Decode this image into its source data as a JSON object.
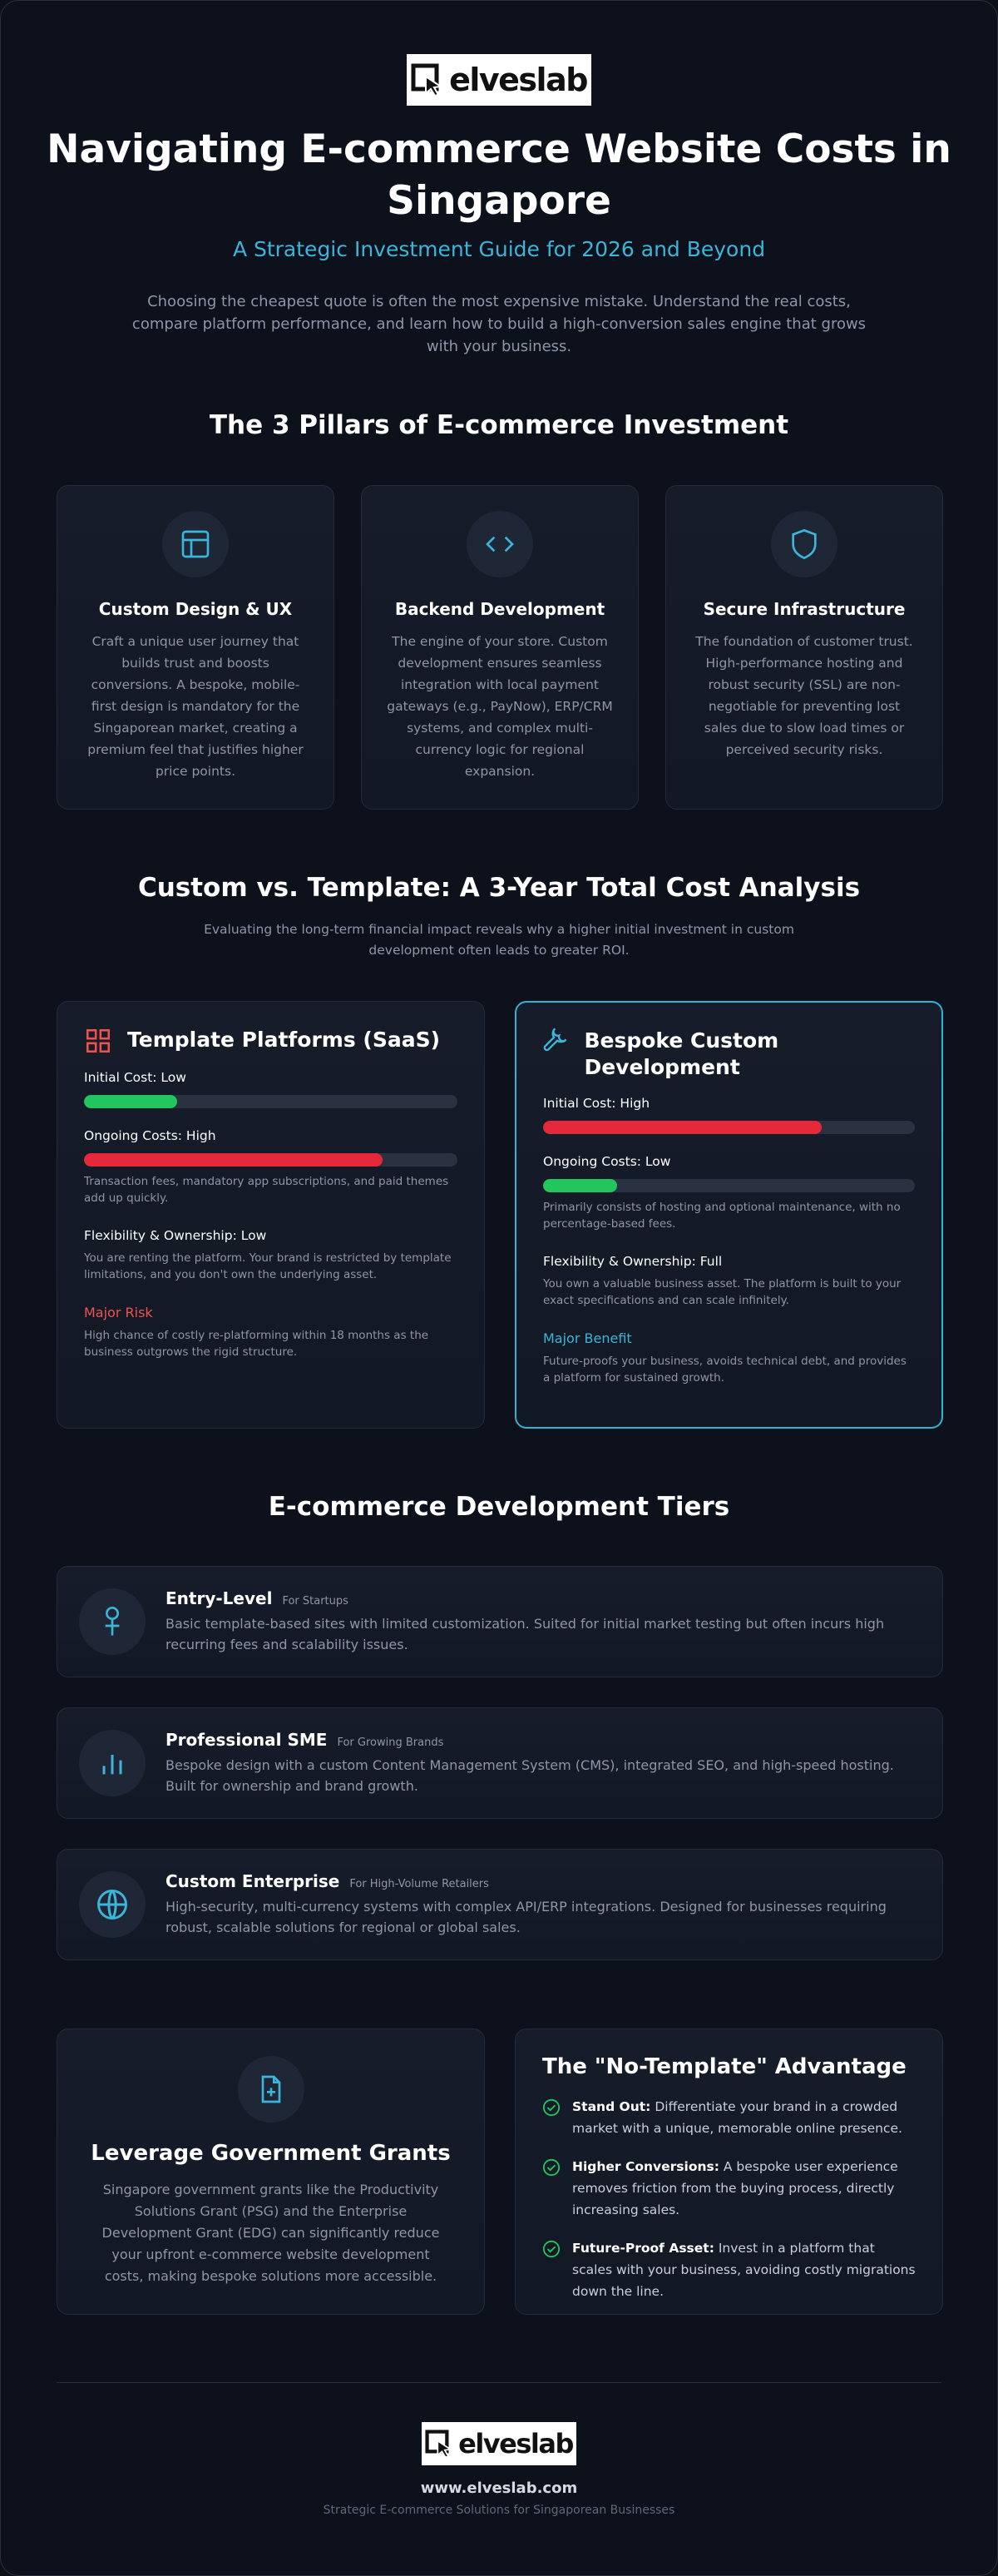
{
  "header": {
    "logo": "elveslab",
    "title": "Navigating E-commerce Website Costs in Singapore",
    "subtitle": "A Strategic Investment Guide for 2026 and Beyond",
    "intro": "Choosing the cheapest quote is often the most expensive mistake. Understand the real costs, compare platform performance, and learn how to build a high-conversion sales engine that grows with your business."
  },
  "pillars": {
    "title": "The 3 Pillars of E-commerce Investment",
    "items": [
      {
        "title": "Custom Design & UX",
        "text": "Craft a unique user journey that builds trust and boosts conversions. A bespoke, mobile-first design is mandatory for the Singaporean market, creating a premium feel that justifies higher price points."
      },
      {
        "title": "Backend Development",
        "text": "The engine of your store. Custom development ensures seamless integration with local payment gateways (e.g., PayNow), ERP/CRM systems, and complex multi-currency logic for regional expansion."
      },
      {
        "title": "Secure Infrastructure",
        "text": "The foundation of customer trust. High-performance hosting and robust security (SSL) are non-negotiable for preventing lost sales due to slow load times or perceived security risks."
      }
    ]
  },
  "comparison": {
    "title": "Custom vs. Template: A 3-Year Total Cost Analysis",
    "subtitle": "Evaluating the long-term financial impact reveals why a higher initial investment in custom development often leads to greater ROI.",
    "cards": [
      {
        "title": "Template Platforms (SaaS)",
        "metrics": [
          {
            "label": "Initial Cost: Low",
            "level": 25,
            "color": "#22c55e"
          },
          {
            "label": "Ongoing Costs: High",
            "level": 80,
            "color": "#e5293a",
            "note": "Transaction fees, mandatory app subscriptions, and paid themes add up quickly."
          }
        ],
        "flexibility": {
          "label": "Flexibility & Ownership: Low",
          "note": "You are renting the platform. Your brand is restricted by template limitations, and you don't own the underlying asset."
        },
        "highlight": {
          "label": "Major Risk",
          "note": "High chance of costly re-platforming within 18 months as the business outgrows the rigid structure."
        }
      },
      {
        "title": "Bespoke Custom Development",
        "metrics": [
          {
            "label": "Initial Cost: High",
            "level": 75,
            "color": "#e5293a"
          },
          {
            "label": "Ongoing Costs: Low",
            "level": 20,
            "color": "#22c55e",
            "note": "Primarily consists of hosting and optional maintenance, with no percentage-based fees."
          }
        ],
        "flexibility": {
          "label": "Flexibility & Ownership: Full",
          "note": "You own a valuable business asset. The platform is built to your exact specifications and can scale infinitely."
        },
        "highlight": {
          "label": "Major Benefit",
          "note": "Future-proofs your business, avoids technical debt, and provides a platform for sustained growth."
        }
      }
    ]
  },
  "tiers": {
    "title": "E-commerce Development Tiers",
    "items": [
      {
        "title": "Entry-Level",
        "tag": "For Startups",
        "text": "Basic template-based sites with limited customization. Suited for initial market testing but often incurs high recurring fees and scalability issues."
      },
      {
        "title": "Professional SME",
        "tag": "For Growing Brands",
        "text": "Bespoke design with a custom Content Management System (CMS), integrated SEO, and high-speed hosting. Built for ownership and brand growth."
      },
      {
        "title": "Custom Enterprise",
        "tag": "For High-Volume Retailers",
        "text": "High-security, multi-currency systems with complex API/ERP integrations. Designed for businesses requiring robust, scalable solutions for regional or global sales."
      }
    ]
  },
  "grants": {
    "title": "Leverage Government Grants",
    "text": "Singapore government grants like the Productivity Solutions Grant (PSG) and the Enterprise Development Grant (EDG) can significantly reduce your upfront e-commerce website development costs, making bespoke solutions more accessible."
  },
  "advantage": {
    "title": "The \"No-Template\" Advantage",
    "items": [
      {
        "lead": "Stand Out:",
        "text": "Differentiate your brand in a crowded market with a unique, memorable online presence."
      },
      {
        "lead": "Higher Conversions:",
        "text": "A bespoke user experience removes friction from the buying process, directly increasing sales."
      },
      {
        "lead": "Future-Proof Asset:",
        "text": "Invest in a platform that scales with your business, avoiding costly migrations down the line."
      }
    ]
  },
  "footer": {
    "logo": "elveslab",
    "url": "www.elveslab.com",
    "tagline": "Strategic E-commerce Solutions for Singaporean Businesses"
  }
}
